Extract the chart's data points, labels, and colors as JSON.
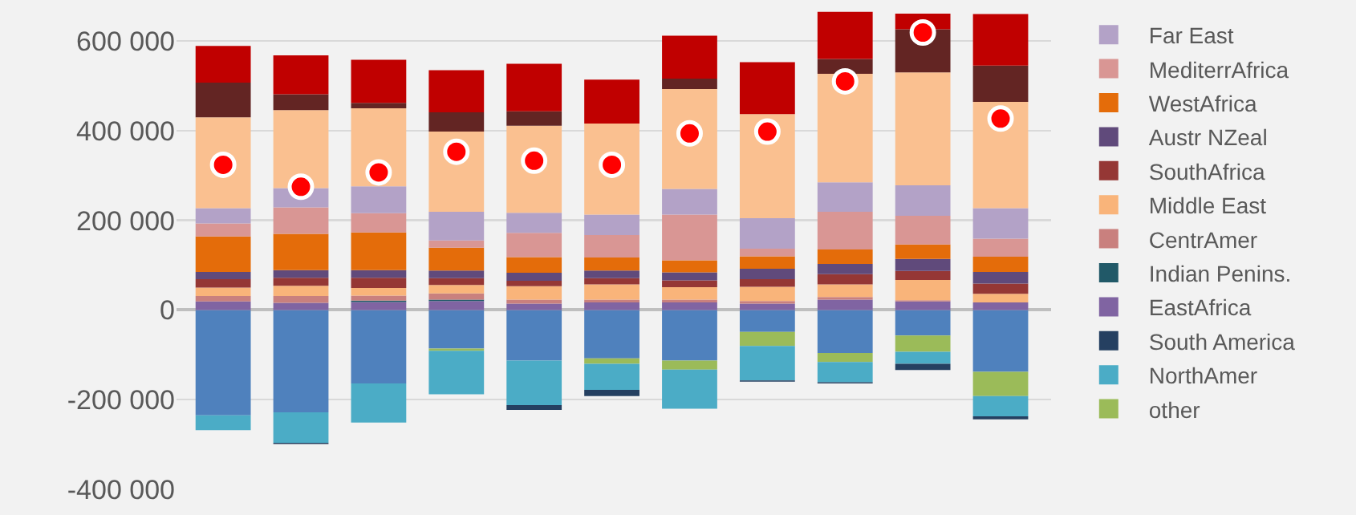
{
  "chart_data": {
    "type": "bar",
    "stacked": true,
    "categories": [
      null,
      null,
      null,
      null,
      null,
      null,
      null,
      null,
      null,
      null,
      null
    ],
    "series": [
      {
        "color": "#4f81bd",
        "values": [
          -235000,
          -228000,
          -164000,
          -86000,
          -113000,
          -108000,
          -113000,
          -49000,
          -96000,
          -57000,
          -138000
        ]
      },
      {
        "name": "other",
        "color": "#9bbb59",
        "values": [
          null,
          null,
          null,
          -5000,
          null,
          -12000,
          -20000,
          -31000,
          -20000,
          -36000,
          -54000
        ]
      },
      {
        "name": "NorthAmer",
        "color": "#4bacc6",
        "values": [
          -33000,
          -68000,
          -87000,
          -97000,
          -99000,
          -58000,
          -87000,
          -77000,
          -45000,
          -27000,
          -45000
        ]
      },
      {
        "name": "South America",
        "color": "#254061",
        "values": [
          null,
          -3000,
          null,
          null,
          -11000,
          -14000,
          null,
          -3000,
          -3000,
          -14000,
          -7000
        ]
      },
      {
        "name": "EastAfrica",
        "color": "#8064a2",
        "values": [
          19000,
          16000,
          18000,
          20000,
          14000,
          17000,
          17000,
          14000,
          23000,
          19000,
          17000
        ]
      },
      {
        "name": "Indian Penins.",
        "color": "#215968",
        "values": [
          null,
          null,
          3000,
          3000,
          null,
          null,
          null,
          null,
          null,
          null,
          null
        ]
      },
      {
        "name": "CentrAmer",
        "color": "#c9807e",
        "values": [
          12000,
          15000,
          11000,
          14000,
          9000,
          6000,
          6000,
          6000,
          6000,
          3000,
          null
        ]
      },
      {
        "name": "Middle East",
        "color": "#f9b47a",
        "values": [
          19000,
          23000,
          17000,
          19000,
          30000,
          34000,
          28000,
          32000,
          28000,
          45000,
          19000
        ]
      },
      {
        "name": "SouthAfrica",
        "color": "#953735",
        "values": [
          19000,
          18000,
          23000,
          15000,
          12000,
          14000,
          15000,
          17000,
          23000,
          20000,
          23000
        ]
      },
      {
        "name": "Austr NZeal",
        "color": "#604a7b",
        "values": [
          16000,
          17000,
          17000,
          17000,
          18000,
          17000,
          18000,
          23000,
          23000,
          27000,
          26000
        ]
      },
      {
        "name": "WestAfrica",
        "color": "#e46c0a",
        "values": [
          79000,
          81000,
          84000,
          51000,
          35000,
          29000,
          27000,
          28000,
          32000,
          32000,
          34000
        ]
      },
      {
        "name": "MediterrAfrica",
        "color": "#d99694",
        "values": [
          29000,
          59000,
          43000,
          16000,
          54000,
          50000,
          102000,
          17000,
          84000,
          64000,
          40000
        ]
      },
      {
        "name": "Far East",
        "color": "#b3a2c7",
        "values": [
          34000,
          43000,
          60000,
          64000,
          45000,
          46000,
          57000,
          68000,
          66000,
          68000,
          68000
        ]
      },
      {
        "color": "#fac090",
        "values": [
          203000,
          174000,
          174000,
          179000,
          194000,
          203000,
          223000,
          232000,
          242000,
          252000,
          237000
        ]
      },
      {
        "color": "#632523",
        "values": [
          77000,
          35000,
          12000,
          43000,
          32000,
          null,
          23000,
          null,
          33000,
          96000,
          81000
        ]
      },
      {
        "color": "#c00000",
        "values": [
          82000,
          87000,
          96000,
          94000,
          106000,
          98000,
          96000,
          116000,
          105000,
          35000,
          115000
        ]
      },
      {
        "type": "scatter",
        "marker": "circle",
        "color": "#ff0000",
        "values": [
          324000,
          275000,
          307000,
          353000,
          333000,
          324000,
          394000,
          398000,
          510000,
          619000,
          427000
        ]
      }
    ],
    "ylim": [
      -400000,
      670000
    ],
    "yticks": [
      {
        "value": -400000,
        "label": "-400 000"
      },
      {
        "value": -200000,
        "label": "-200 000"
      },
      0,
      {
        "value": 200000,
        "label": "200 000"
      },
      {
        "value": 400000,
        "label": "400 000"
      },
      {
        "value": 600000,
        "label": "600 000"
      }
    ],
    "grid": "y",
    "legend": "top right"
  }
}
